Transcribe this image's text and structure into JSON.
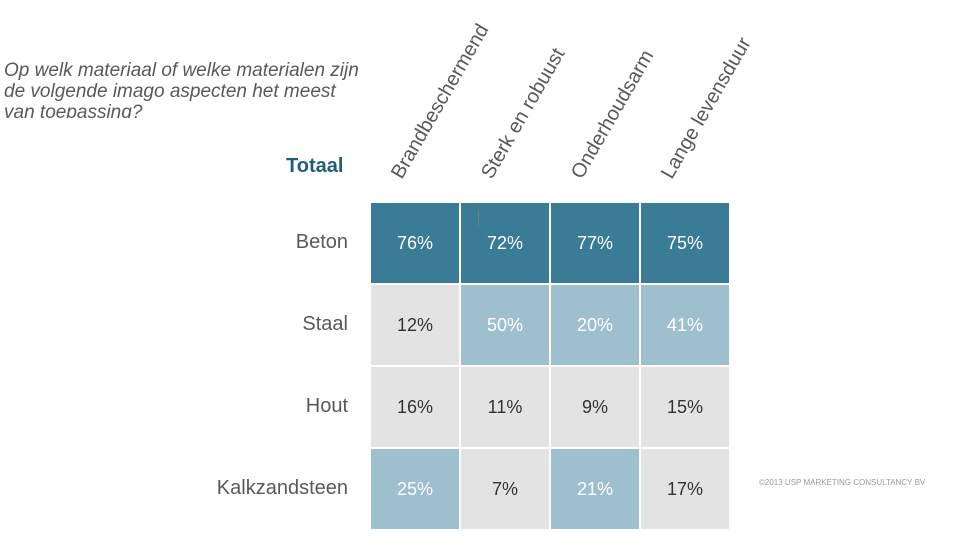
{
  "question": "Op welk materiaal of welke materialen zijn\nde volgende imago aspecten het meest\nvan toepassing?",
  "segment_label": "Totaal",
  "footer": "©2013 USP MARKETING CONSULTANCY BV",
  "colors": {
    "high": "#3a7b96",
    "mid": "#9ebfcd",
    "low": "#e3e3e3",
    "title_accent": "#1f5f7a"
  },
  "chart_data": {
    "type": "table",
    "columns": [
      "Brandbeschermend",
      "Sterk en robuust",
      "Onderhoudsarm",
      "Lange levensduur"
    ],
    "rows": [
      {
        "label": "Beton",
        "values": [
          "76%",
          "72%",
          "77%",
          "75%"
        ],
        "shade": [
          "high",
          "high",
          "high",
          "high"
        ]
      },
      {
        "label": "Staal",
        "values": [
          "12%",
          "50%",
          "20%",
          "41%"
        ],
        "shade": [
          "low",
          "mid",
          "mid",
          "mid"
        ]
      },
      {
        "label": "Hout",
        "values": [
          "16%",
          "11%",
          "9%",
          "15%"
        ],
        "shade": [
          "low",
          "low",
          "low",
          "low"
        ]
      },
      {
        "label": "Kalkzandsteen",
        "values": [
          "25%",
          "7%",
          "21%",
          "17%"
        ],
        "shade": [
          "mid",
          "low",
          "mid",
          "low"
        ]
      }
    ]
  }
}
